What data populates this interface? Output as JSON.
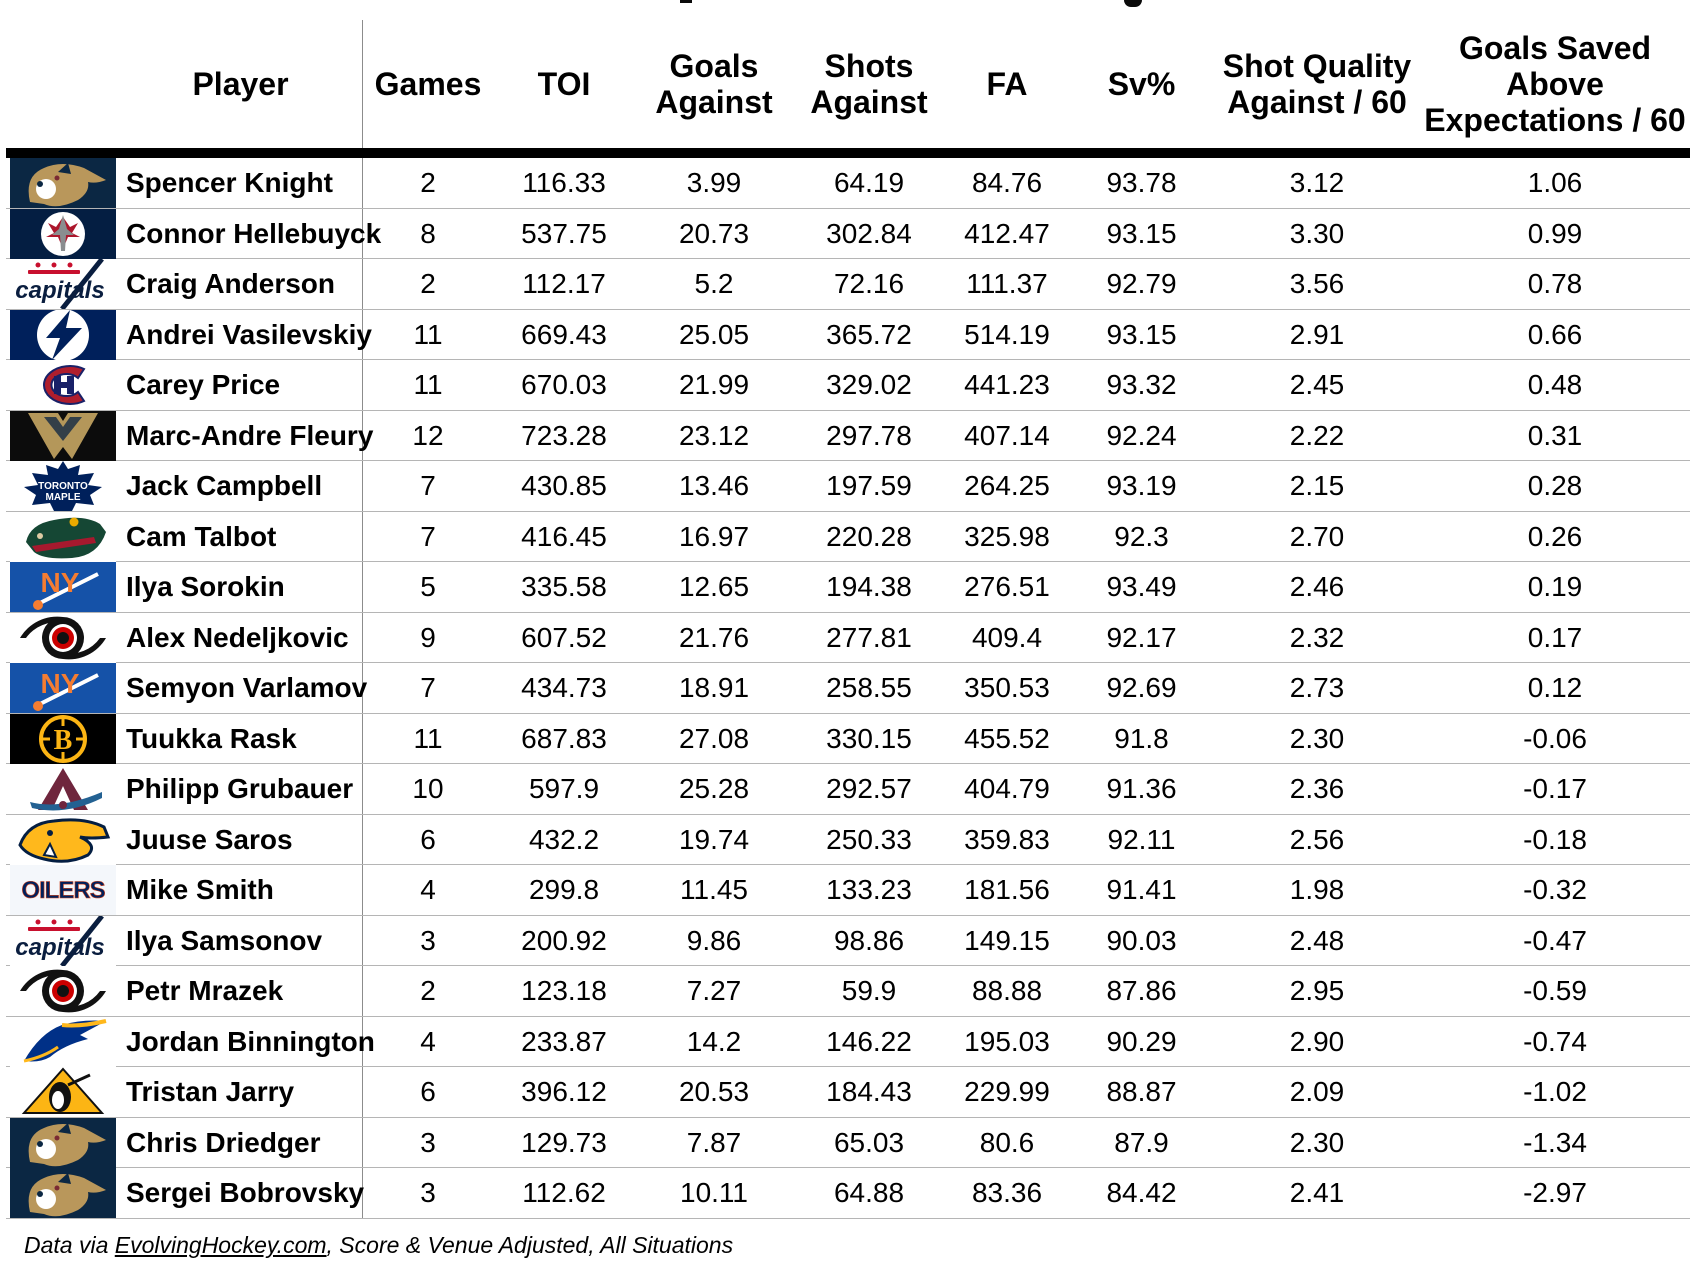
{
  "chart_data": {
    "type": "table",
    "columns": [
      {
        "key": "player",
        "label": "Player"
      },
      {
        "key": "games",
        "label": "Games"
      },
      {
        "key": "toi",
        "label": "TOI"
      },
      {
        "key": "goals_against",
        "label": "Goals\nAgainst"
      },
      {
        "key": "shots_against",
        "label": "Shots\nAgainst"
      },
      {
        "key": "fa",
        "label": "FA"
      },
      {
        "key": "sv_pct",
        "label": "Sv%"
      },
      {
        "key": "sqa60",
        "label": "Shot Quality\nAgainst / 60"
      },
      {
        "key": "gsae60",
        "label": "Goals Saved\nAbove\nExpectations / 60"
      }
    ],
    "rows": [
      {
        "player": "Spencer Knight",
        "team": "florida-panthers",
        "games": "2",
        "toi": "116.33",
        "goals_against": "3.99",
        "shots_against": "64.19",
        "fa": "84.76",
        "sv_pct": "93.78",
        "sqa60": "3.12",
        "gsae60": "1.06"
      },
      {
        "player": "Connor Hellebuyck",
        "team": "winnipeg-jets",
        "games": "8",
        "toi": "537.75",
        "goals_against": "20.73",
        "shots_against": "302.84",
        "fa": "412.47",
        "sv_pct": "93.15",
        "sqa60": "3.30",
        "gsae60": "0.99"
      },
      {
        "player": "Craig Anderson",
        "team": "washington-capitals",
        "games": "2",
        "toi": "112.17",
        "goals_against": "5.2",
        "shots_against": "72.16",
        "fa": "111.37",
        "sv_pct": "92.79",
        "sqa60": "3.56",
        "gsae60": "0.78"
      },
      {
        "player": "Andrei Vasilevskiy",
        "team": "tampa-bay-lightning",
        "games": "11",
        "toi": "669.43",
        "goals_against": "25.05",
        "shots_against": "365.72",
        "fa": "514.19",
        "sv_pct": "93.15",
        "sqa60": "2.91",
        "gsae60": "0.66"
      },
      {
        "player": "Carey Price",
        "team": "montreal-canadiens",
        "games": "11",
        "toi": "670.03",
        "goals_against": "21.99",
        "shots_against": "329.02",
        "fa": "441.23",
        "sv_pct": "93.32",
        "sqa60": "2.45",
        "gsae60": "0.48"
      },
      {
        "player": "Marc-Andre Fleury",
        "team": "vegas-golden-knights",
        "games": "12",
        "toi": "723.28",
        "goals_against": "23.12",
        "shots_against": "297.78",
        "fa": "407.14",
        "sv_pct": "92.24",
        "sqa60": "2.22",
        "gsae60": "0.31"
      },
      {
        "player": "Jack Campbell",
        "team": "toronto-maple-leafs",
        "games": "7",
        "toi": "430.85",
        "goals_against": "13.46",
        "shots_against": "197.59",
        "fa": "264.25",
        "sv_pct": "93.19",
        "sqa60": "2.15",
        "gsae60": "0.28"
      },
      {
        "player": "Cam Talbot",
        "team": "minnesota-wild",
        "games": "7",
        "toi": "416.45",
        "goals_against": "16.97",
        "shots_against": "220.28",
        "fa": "325.98",
        "sv_pct": "92.3",
        "sqa60": "2.70",
        "gsae60": "0.26"
      },
      {
        "player": "Ilya Sorokin",
        "team": "new-york-islanders",
        "games": "5",
        "toi": "335.58",
        "goals_against": "12.65",
        "shots_against": "194.38",
        "fa": "276.51",
        "sv_pct": "93.49",
        "sqa60": "2.46",
        "gsae60": "0.19"
      },
      {
        "player": "Alex Nedeljkovic",
        "team": "carolina-hurricanes",
        "games": "9",
        "toi": "607.52",
        "goals_against": "21.76",
        "shots_against": "277.81",
        "fa": "409.4",
        "sv_pct": "92.17",
        "sqa60": "2.32",
        "gsae60": "0.17"
      },
      {
        "player": "Semyon Varlamov",
        "team": "new-york-islanders",
        "games": "7",
        "toi": "434.73",
        "goals_against": "18.91",
        "shots_against": "258.55",
        "fa": "350.53",
        "sv_pct": "92.69",
        "sqa60": "2.73",
        "gsae60": "0.12"
      },
      {
        "player": "Tuukka Rask",
        "team": "boston-bruins",
        "games": "11",
        "toi": "687.83",
        "goals_against": "27.08",
        "shots_against": "330.15",
        "fa": "455.52",
        "sv_pct": "91.8",
        "sqa60": "2.30",
        "gsae60": "-0.06"
      },
      {
        "player": "Philipp Grubauer",
        "team": "colorado-avalanche",
        "games": "10",
        "toi": "597.9",
        "goals_against": "25.28",
        "shots_against": "292.57",
        "fa": "404.79",
        "sv_pct": "91.36",
        "sqa60": "2.36",
        "gsae60": "-0.17"
      },
      {
        "player": "Juuse Saros",
        "team": "nashville-predators",
        "games": "6",
        "toi": "432.2",
        "goals_against": "19.74",
        "shots_against": "250.33",
        "fa": "359.83",
        "sv_pct": "92.11",
        "sqa60": "2.56",
        "gsae60": "-0.18"
      },
      {
        "player": "Mike Smith",
        "team": "edmonton-oilers",
        "games": "4",
        "toi": "299.8",
        "goals_against": "11.45",
        "shots_against": "133.23",
        "fa": "181.56",
        "sv_pct": "91.41",
        "sqa60": "1.98",
        "gsae60": "-0.32"
      },
      {
        "player": "Ilya Samsonov",
        "team": "washington-capitals",
        "games": "3",
        "toi": "200.92",
        "goals_against": "9.86",
        "shots_against": "98.86",
        "fa": "149.15",
        "sv_pct": "90.03",
        "sqa60": "2.48",
        "gsae60": "-0.47"
      },
      {
        "player": "Petr Mrazek",
        "team": "carolina-hurricanes",
        "games": "2",
        "toi": "123.18",
        "goals_against": "7.27",
        "shots_against": "59.9",
        "fa": "88.88",
        "sv_pct": "87.86",
        "sqa60": "2.95",
        "gsae60": "-0.59"
      },
      {
        "player": "Jordan Binnington",
        "team": "st-louis-blues",
        "games": "4",
        "toi": "233.87",
        "goals_against": "14.2",
        "shots_against": "146.22",
        "fa": "195.03",
        "sv_pct": "90.29",
        "sqa60": "2.90",
        "gsae60": "-0.74"
      },
      {
        "player": "Tristan Jarry",
        "team": "pittsburgh-penguins",
        "games": "6",
        "toi": "396.12",
        "goals_against": "20.53",
        "shots_against": "184.43",
        "fa": "229.99",
        "sv_pct": "88.87",
        "sqa60": "2.09",
        "gsae60": "-1.02"
      },
      {
        "player": "Chris Driedger",
        "team": "florida-panthers",
        "games": "3",
        "toi": "129.73",
        "goals_against": "7.87",
        "shots_against": "65.03",
        "fa": "80.6",
        "sv_pct": "87.9",
        "sqa60": "2.30",
        "gsae60": "-1.34"
      },
      {
        "player": "Sergei Bobrovsky",
        "team": "florida-panthers",
        "games": "3",
        "toi": "112.62",
        "goals_against": "10.11",
        "shots_against": "64.88",
        "fa": "83.36",
        "sv_pct": "84.42",
        "sqa60": "2.41",
        "gsae60": "-2.97"
      }
    ]
  },
  "footer": {
    "text_prefix": "Data via ",
    "link_text": "EvolvingHockey.com",
    "text_suffix": ", Score & Venue Adjusted, All Situations"
  }
}
